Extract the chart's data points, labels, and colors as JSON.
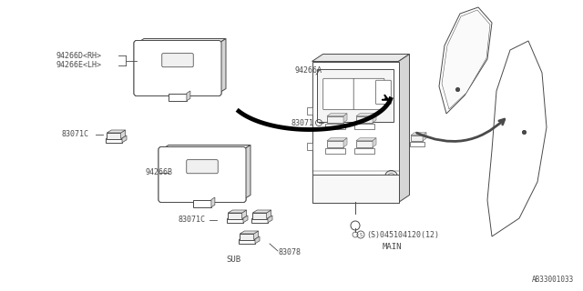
{
  "bg_color": "#ffffff",
  "line_color": "#4a4a4a",
  "text_color": "#4a4a4a",
  "fig_width": 6.4,
  "fig_height": 3.2,
  "dpi": 100,
  "diagram_title": "AB33001033",
  "label_94266D": "94266D<RH>",
  "label_94266E": "94266E<LH>",
  "label_94266A": "94266A",
  "label_94266B": "94266B",
  "label_83071C_top": "83071C",
  "label_83071C_bot": "83071C",
  "label_83071": "83071",
  "label_screw": "(S)045104120(12)",
  "label_main": "MAIN",
  "label_sub": "SUB",
  "label_83078": "83078"
}
